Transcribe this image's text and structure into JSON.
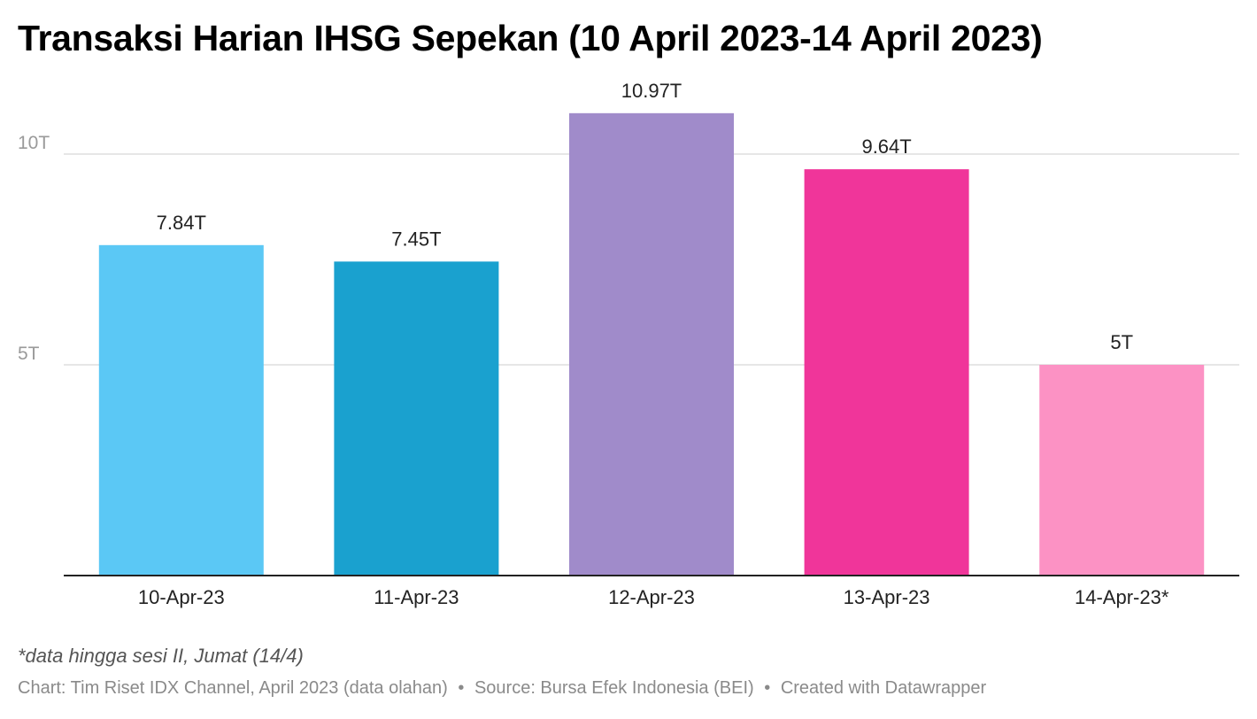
{
  "title": "Transaksi Harian IHSG Sepekan (10 April 2023-14 April 2023)",
  "note": "*data hingga sesi II, Jumat (14/4)",
  "footer": {
    "chart_credit": "Chart: Tim Riset IDX Channel, April 2023 (data olahan)",
    "separator": "•",
    "source": "Source: Bursa Efek Indonesia (BEI)",
    "created_with": "Created with Datawrapper"
  },
  "chart_data": {
    "type": "bar",
    "title": "Transaksi Harian IHSG Sepekan (10 April 2023-14 April 2023)",
    "categories": [
      "10-Apr-23",
      "11-Apr-23",
      "12-Apr-23",
      "13-Apr-23",
      "14-Apr-23*"
    ],
    "values": [
      7.84,
      7.45,
      10.97,
      9.64,
      5
    ],
    "value_labels": [
      "7.84T",
      "7.45T",
      "10.97T",
      "9.64T",
      "5T"
    ],
    "colors": [
      "#5bc8f5",
      "#1aa1cf",
      "#a08bca",
      "#f0359a",
      "#fc92c4"
    ],
    "yticks": [
      5,
      10
    ],
    "ytick_labels": [
      "5T",
      "10T"
    ],
    "ylim": [
      0,
      11.5
    ],
    "grid": true,
    "xlabel": "",
    "ylabel": ""
  }
}
